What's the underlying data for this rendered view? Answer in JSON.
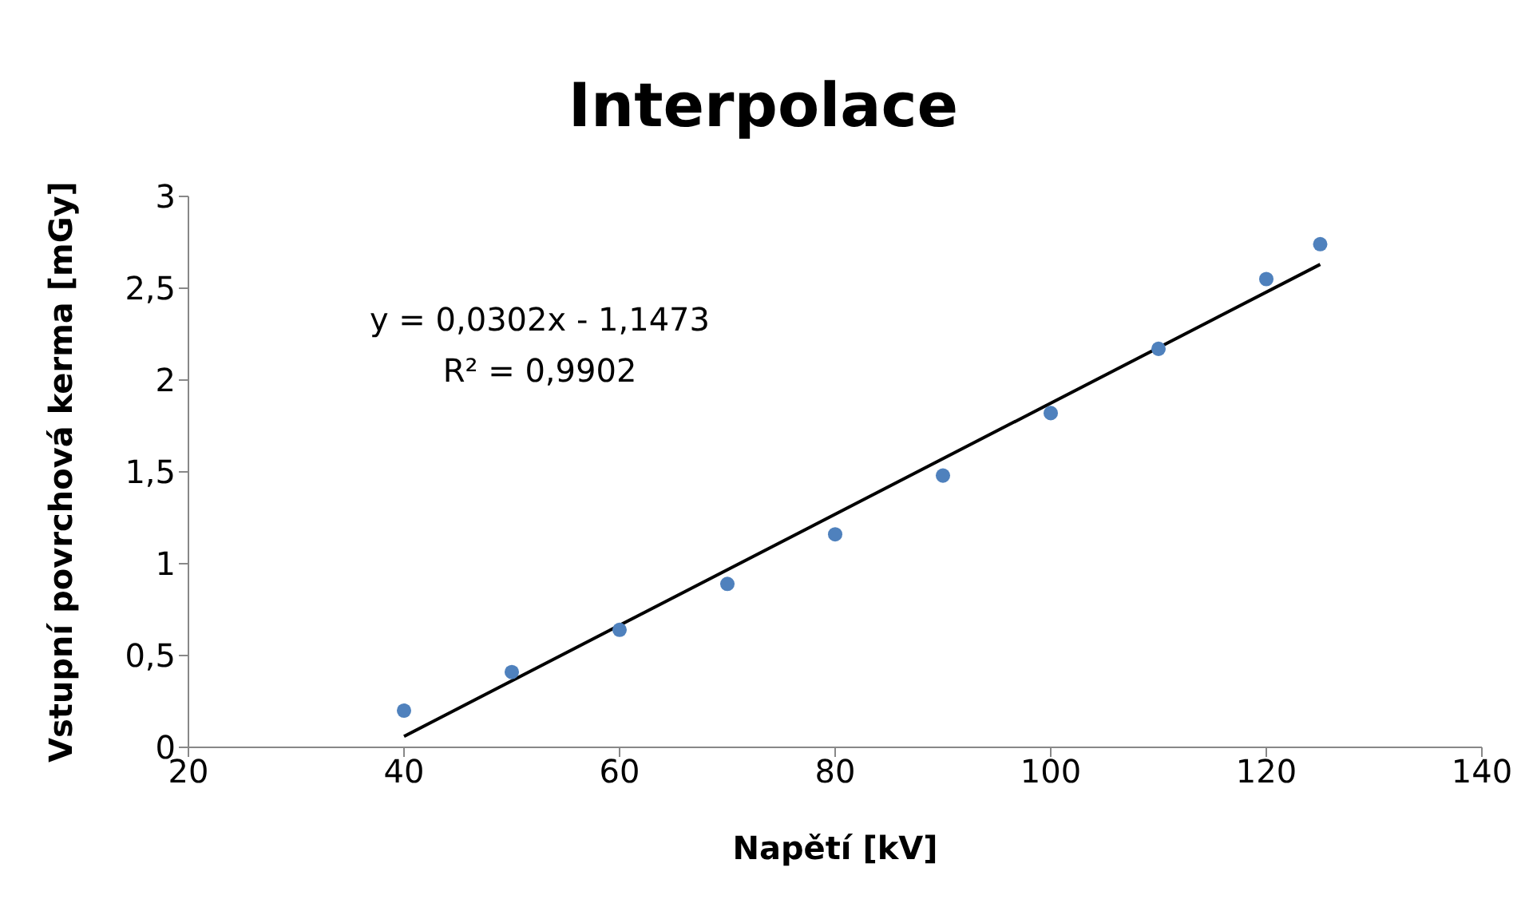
{
  "chart_data": {
    "type": "scatter",
    "title": "Interpolace",
    "xlabel": "Napětí [kV]",
    "ylabel": "Vstupní povrchová kerma [mGy]",
    "annotations": [
      "y = 0,0302x - 1,1473",
      "R² = 0,9902"
    ],
    "xlim": [
      20,
      140
    ],
    "xticks": [
      20,
      40,
      60,
      80,
      100,
      120,
      140
    ],
    "ylim": [
      0,
      3
    ],
    "yticks": [
      0,
      {
        "value": 0.5,
        "label": "0,5"
      },
      1,
      {
        "value": 1.5,
        "label": "1,5"
      },
      2,
      {
        "value": 2.5,
        "label": "2,5"
      },
      3
    ],
    "series": [
      {
        "color": "#4f81bd",
        "marker": "circle",
        "x": [
          40,
          50,
          60,
          70,
          80,
          90,
          100,
          110,
          120,
          125
        ],
        "values": [
          0.2,
          0.41,
          0.64,
          0.89,
          1.16,
          1.48,
          1.82,
          2.17,
          2.55,
          2.74
        ]
      },
      {
        "type": "line",
        "color": "#000000",
        "marker": "none",
        "line_style": "solid",
        "x": [
          40,
          125
        ],
        "values": [
          0.06,
          2.63
        ]
      }
    ]
  }
}
